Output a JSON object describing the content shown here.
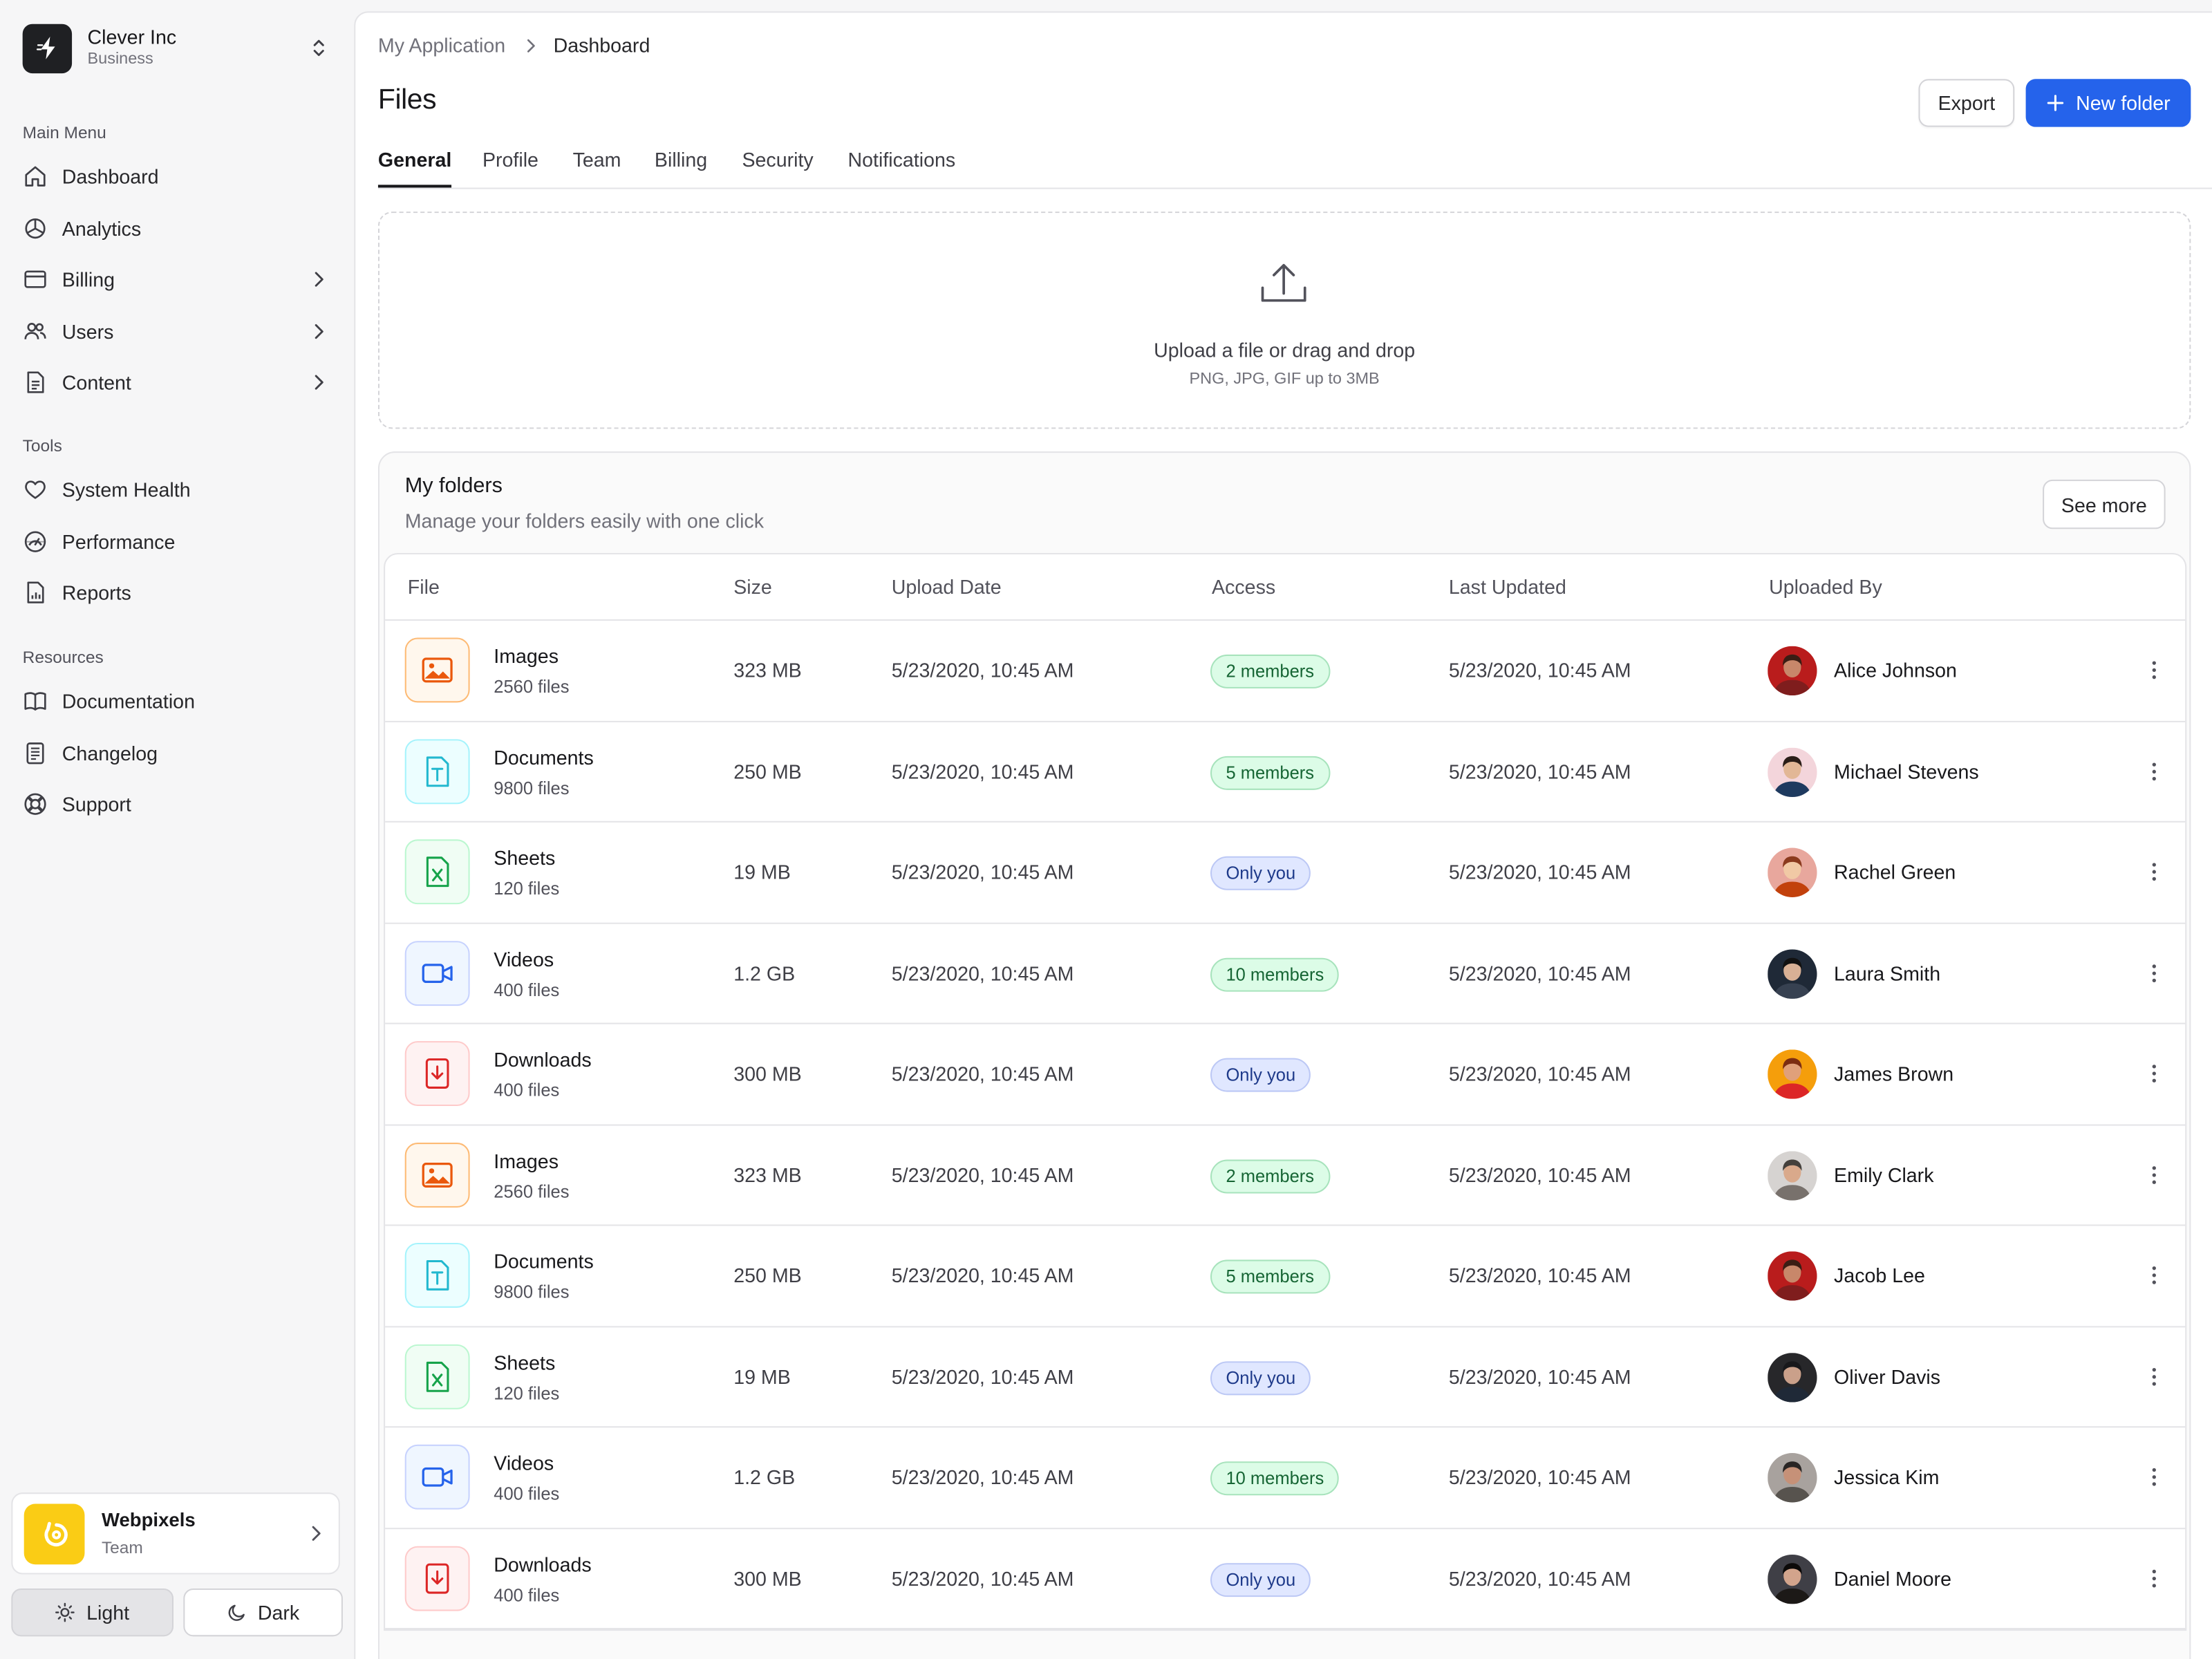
{
  "org": {
    "name": "Clever Inc",
    "plan": "Business"
  },
  "sidebar": {
    "sections": [
      {
        "label": "Main Menu",
        "items": [
          {
            "label": "Dashboard",
            "icon": "home-icon",
            "has_submenu": false
          },
          {
            "label": "Analytics",
            "icon": "pie-chart-icon",
            "has_submenu": false
          },
          {
            "label": "Billing",
            "icon": "credit-card-icon",
            "has_submenu": true
          },
          {
            "label": "Users",
            "icon": "users-icon",
            "has_submenu": true
          },
          {
            "label": "Content",
            "icon": "document-icon",
            "has_submenu": true
          }
        ]
      },
      {
        "label": "Tools",
        "items": [
          {
            "label": "System Health",
            "icon": "heart-icon",
            "has_submenu": false
          },
          {
            "label": "Performance",
            "icon": "gauge-icon",
            "has_submenu": false
          },
          {
            "label": "Reports",
            "icon": "report-icon",
            "has_submenu": false
          }
        ]
      },
      {
        "label": "Resources",
        "items": [
          {
            "label": "Documentation",
            "icon": "book-icon",
            "has_submenu": false
          },
          {
            "label": "Changelog",
            "icon": "changelog-icon",
            "has_submenu": false
          },
          {
            "label": "Support",
            "icon": "lifebuoy-icon",
            "has_submenu": false
          }
        ]
      }
    ]
  },
  "team": {
    "name": "Webpixels",
    "role": "Team"
  },
  "theme": {
    "light_label": "Light",
    "dark_label": "Dark",
    "selected": "light"
  },
  "breadcrumb": {
    "parent": "My Application",
    "current": "Dashboard"
  },
  "page": {
    "title": "Files",
    "export_label": "Export",
    "new_folder_label": "New folder"
  },
  "tabs": [
    {
      "label": "General",
      "active": true
    },
    {
      "label": "Profile",
      "active": false
    },
    {
      "label": "Team",
      "active": false
    },
    {
      "label": "Billing",
      "active": false
    },
    {
      "label": "Security",
      "active": false
    },
    {
      "label": "Notifications",
      "active": false
    }
  ],
  "upload": {
    "title": "Upload a file or drag and drop",
    "subtitle": "PNG, JPG, GIF up to 3MB"
  },
  "folders": {
    "title": "My folders",
    "subtitle": "Manage your folders easily with one click",
    "see_more_label": "See more",
    "columns": [
      "File",
      "Size",
      "Upload Date",
      "Access",
      "Last Updated",
      "Uploaded By"
    ],
    "rows": [
      {
        "type": "images",
        "name": "Images",
        "count": "2560 files",
        "size": "323 MB",
        "upload_date": "5/23/2020, 10:45 AM",
        "access": "2 members",
        "access_kind": "members",
        "last_updated": "5/23/2020, 10:45 AM",
        "uploaded_by": "Alice Johnson"
      },
      {
        "type": "documents",
        "name": "Documents",
        "count": "9800 files",
        "size": "250 MB",
        "upload_date": "5/23/2020, 10:45 AM",
        "access": "5 members",
        "access_kind": "members",
        "last_updated": "5/23/2020, 10:45 AM",
        "uploaded_by": "Michael Stevens"
      },
      {
        "type": "sheets",
        "name": "Sheets",
        "count": "120 files",
        "size": "19 MB",
        "upload_date": "5/23/2020, 10:45 AM",
        "access": "Only you",
        "access_kind": "private",
        "last_updated": "5/23/2020, 10:45 AM",
        "uploaded_by": "Rachel Green"
      },
      {
        "type": "videos",
        "name": "Videos",
        "count": "400 files",
        "size": "1.2 GB",
        "upload_date": "5/23/2020, 10:45 AM",
        "access": "10 members",
        "access_kind": "members",
        "last_updated": "5/23/2020, 10:45 AM",
        "uploaded_by": "Laura Smith"
      },
      {
        "type": "downloads",
        "name": "Downloads",
        "count": "400 files",
        "size": "300 MB",
        "upload_date": "5/23/2020, 10:45 AM",
        "access": "Only you",
        "access_kind": "private",
        "last_updated": "5/23/2020, 10:45 AM",
        "uploaded_by": "James Brown"
      },
      {
        "type": "images",
        "name": "Images",
        "count": "2560 files",
        "size": "323 MB",
        "upload_date": "5/23/2020, 10:45 AM",
        "access": "2 members",
        "access_kind": "members",
        "last_updated": "5/23/2020, 10:45 AM",
        "uploaded_by": "Emily Clark"
      },
      {
        "type": "documents",
        "name": "Documents",
        "count": "9800 files",
        "size": "250 MB",
        "upload_date": "5/23/2020, 10:45 AM",
        "access": "5 members",
        "access_kind": "members",
        "last_updated": "5/23/2020, 10:45 AM",
        "uploaded_by": "Jacob Lee"
      },
      {
        "type": "sheets",
        "name": "Sheets",
        "count": "120 files",
        "size": "19 MB",
        "upload_date": "5/23/2020, 10:45 AM",
        "access": "Only you",
        "access_kind": "private",
        "last_updated": "5/23/2020, 10:45 AM",
        "uploaded_by": "Oliver Davis"
      },
      {
        "type": "videos",
        "name": "Videos",
        "count": "400 files",
        "size": "1.2 GB",
        "upload_date": "5/23/2020, 10:45 AM",
        "access": "10 members",
        "access_kind": "members",
        "last_updated": "5/23/2020, 10:45 AM",
        "uploaded_by": "Jessica Kim"
      },
      {
        "type": "downloads",
        "name": "Downloads",
        "count": "400 files",
        "size": "300 MB",
        "upload_date": "5/23/2020, 10:45 AM",
        "access": "Only you",
        "access_kind": "private",
        "last_updated": "5/23/2020, 10:45 AM",
        "uploaded_by": "Daniel Moore"
      }
    ]
  },
  "colors": {
    "primary": "#2563eb",
    "images": "#ea580c",
    "documents": "#22b8cf",
    "sheets": "#16a34a",
    "videos": "#2563eb",
    "downloads": "#dc2626",
    "members_badge": "#dcfce7",
    "private_badge": "#e0e7ff",
    "team_logo": "#facc15"
  }
}
